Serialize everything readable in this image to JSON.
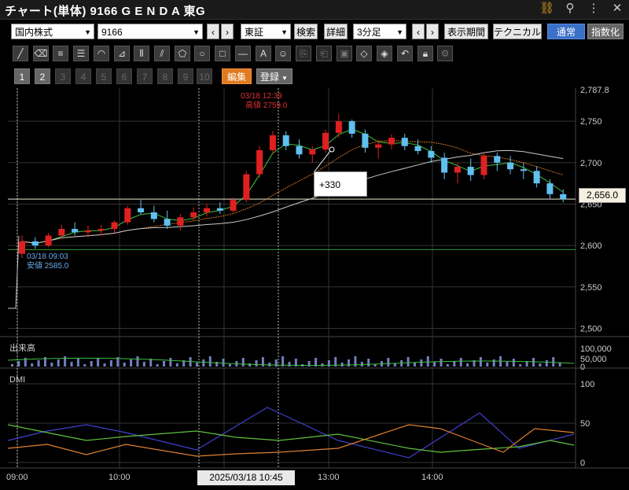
{
  "title": "チャート(単体) 9166 G E N D A 東G",
  "title_icons": [
    "link-icon",
    "search-icon",
    "more-icon",
    "close-icon"
  ],
  "toolbar1": {
    "market_select": "国内株式",
    "code_select": "9166",
    "exchange_select": "東証",
    "search_btn": "検索",
    "detail_btn": "詳細",
    "interval_select": "3分足",
    "period_btn": "表示期間",
    "technical_btn": "テクニカル",
    "normal_btn": "通常",
    "index_btn": "指数化",
    "prev": "‹",
    "next": "›"
  },
  "drawing_tools": [
    "line",
    "eraser",
    "hlines",
    "hlines2",
    "arc",
    "fan",
    "vlines",
    "slant",
    "pentagon",
    "circle",
    "rect",
    "hline",
    "text",
    "icon",
    "copy",
    "paste",
    "shot",
    "tag",
    "tag2",
    "undo",
    "lock",
    "gear"
  ],
  "layout_tabs": [
    "1",
    "2",
    "3",
    "4",
    "5",
    "6",
    "7",
    "8",
    "9",
    "10"
  ],
  "edit_btn": "編集",
  "register_btn": "登録",
  "annotations": {
    "high_time": "03/18 12:39",
    "high_label": "高値 2759.0",
    "low_time": "03/18 09:03",
    "low_label": "安値 2585.0",
    "delta": "+330",
    "last_price": "2,656.0",
    "cursor_time": "2025/03/18 10:45"
  },
  "panels": {
    "volume_label": "出来高",
    "dmi_label": "DMI"
  },
  "price_axis": [
    "2,787.8",
    "2,750",
    "2,700",
    "2,650",
    "2,600",
    "2,550",
    "2,500"
  ],
  "volume_axis": [
    "100,000",
    "50,000",
    "0"
  ],
  "dmi_axis": [
    "100",
    "50",
    "0"
  ],
  "time_axis": [
    "09:00",
    "10:00",
    "13:00",
    "14:00"
  ],
  "chart_data": {
    "type": "candlestick",
    "symbol": "9166",
    "interval": "3分足",
    "ylim": [
      2490,
      2790
    ],
    "candles": [
      [
        2590,
        2612,
        2585,
        2605
      ],
      [
        2605,
        2610,
        2596,
        2600
      ],
      [
        2600,
        2615,
        2598,
        2612
      ],
      [
        2612,
        2625,
        2608,
        2620
      ],
      [
        2620,
        2628,
        2612,
        2616
      ],
      [
        2616,
        2624,
        2610,
        2618
      ],
      [
        2618,
        2625,
        2612,
        2620
      ],
      [
        2620,
        2630,
        2615,
        2628
      ],
      [
        2628,
        2648,
        2625,
        2645
      ],
      [
        2645,
        2655,
        2638,
        2640
      ],
      [
        2640,
        2648,
        2628,
        2632
      ],
      [
        2632,
        2642,
        2620,
        2624
      ],
      [
        2624,
        2638,
        2618,
        2634
      ],
      [
        2634,
        2646,
        2630,
        2640
      ],
      [
        2640,
        2650,
        2635,
        2645
      ],
      [
        2645,
        2652,
        2638,
        2642
      ],
      [
        2642,
        2658,
        2640,
        2655
      ],
      [
        2655,
        2690,
        2652,
        2686
      ],
      [
        2686,
        2720,
        2682,
        2715
      ],
      [
        2715,
        2738,
        2710,
        2733
      ],
      [
        2733,
        2738,
        2715,
        2720
      ],
      [
        2720,
        2728,
        2705,
        2710
      ],
      [
        2710,
        2720,
        2700,
        2716
      ],
      [
        2716,
        2740,
        2712,
        2736
      ],
      [
        2736,
        2759,
        2730,
        2750
      ],
      [
        2750,
        2752,
        2730,
        2735
      ],
      [
        2735,
        2740,
        2712,
        2718
      ],
      [
        2718,
        2728,
        2705,
        2722
      ],
      [
        2722,
        2734,
        2716,
        2730
      ],
      [
        2730,
        2735,
        2715,
        2720
      ],
      [
        2720,
        2728,
        2710,
        2714
      ],
      [
        2714,
        2720,
        2700,
        2706
      ],
      [
        2706,
        2712,
        2680,
        2688
      ],
      [
        2688,
        2700,
        2675,
        2695
      ],
      [
        2695,
        2705,
        2678,
        2685
      ],
      [
        2685,
        2712,
        2680,
        2708
      ],
      [
        2708,
        2712,
        2690,
        2700
      ],
      [
        2700,
        2708,
        2686,
        2692
      ],
      [
        2692,
        2700,
        2680,
        2690
      ],
      [
        2690,
        2696,
        2670,
        2675
      ],
      [
        2675,
        2680,
        2656,
        2662
      ],
      [
        2662,
        2668,
        2652,
        2656
      ]
    ],
    "markers": {
      "high": 2759.0,
      "low": 2585.0,
      "last": 2656.0,
      "delta": 330
    }
  }
}
